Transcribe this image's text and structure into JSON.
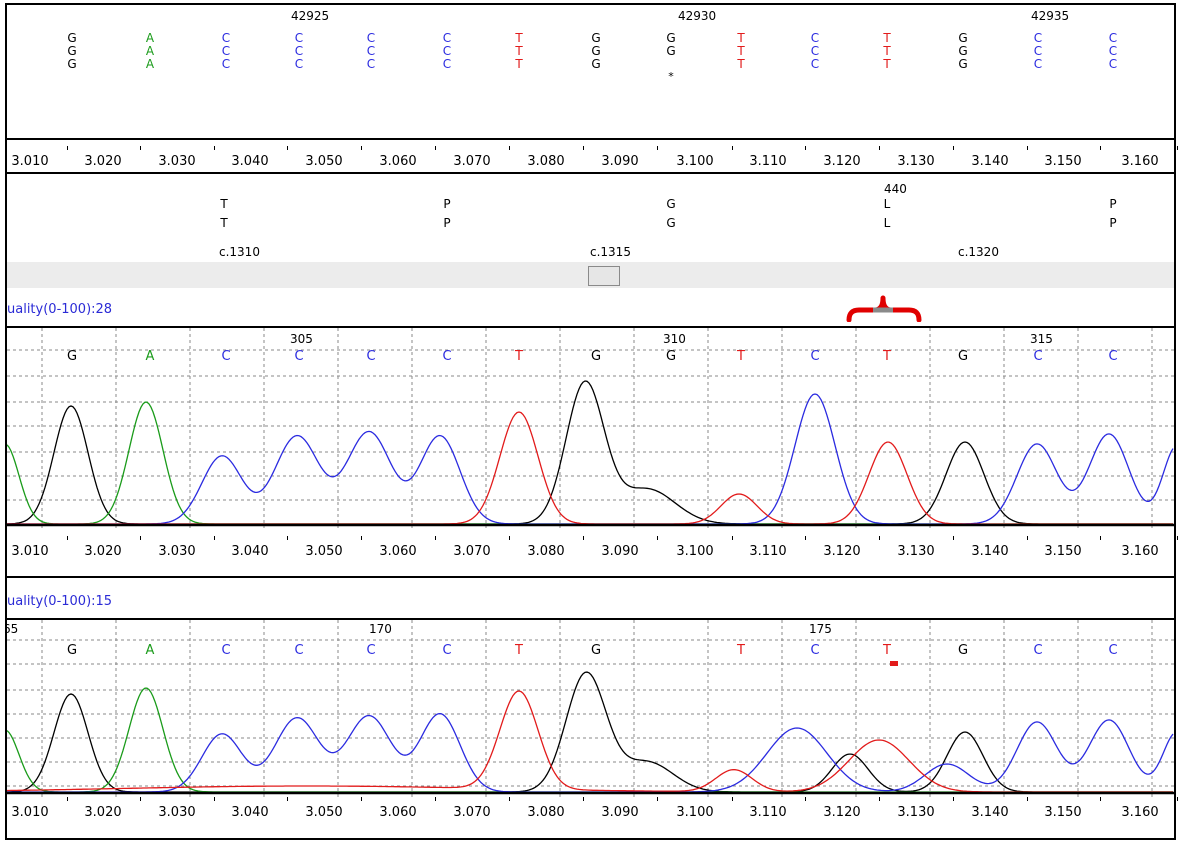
{
  "colors": {
    "A": "#1a9b1a",
    "C": "#2b2be0",
    "G": "#000000",
    "T": "#e21b1b",
    "quality_text": "#2b2bd6",
    "bracket": "#e00000"
  },
  "reference_panel": {
    "position_labels": [
      "42925",
      "42930",
      "42935"
    ],
    "rows": [
      [
        "G",
        "A",
        "C",
        "C",
        "C",
        "C",
        "T",
        "G",
        "G",
        "T",
        "C",
        "T",
        "G",
        "C",
        "C"
      ],
      [
        "G",
        "A",
        "C",
        "C",
        "C",
        "C",
        "T",
        "G",
        "G",
        "T",
        "C",
        "T",
        "G",
        "C",
        "C"
      ],
      [
        "G",
        "A",
        "C",
        "C",
        "C",
        "C",
        "T",
        "G",
        "",
        "T",
        "C",
        "T",
        "G",
        "C",
        "C"
      ]
    ],
    "gap_marker": "*"
  },
  "ruler_ticks": [
    "3.010",
    "3.020",
    "3.030",
    "3.040",
    "3.050",
    "3.060",
    "3.070",
    "3.080",
    "3.090",
    "3.100",
    "3.110",
    "3.120",
    "3.130",
    "3.140",
    "3.150",
    "3.160"
  ],
  "protein_panel": {
    "codon_number": "440",
    "row1": [
      "T",
      "P",
      "G",
      "L",
      "P"
    ],
    "row2": [
      "T",
      "P",
      "G",
      "L",
      "P"
    ],
    "cdna_labels": [
      "c.1310",
      "c.1315",
      "c.1320"
    ]
  },
  "trace1": {
    "quality_label": "uality(0-100):28",
    "position_labels": [
      "305",
      "310",
      "315"
    ],
    "bases": [
      "G",
      "A",
      "C",
      "C",
      "C",
      "C",
      "T",
      "G",
      "G",
      "T",
      "C",
      "T",
      "G",
      "C",
      "C"
    ]
  },
  "trace2": {
    "quality_label": "uality(0-100):15",
    "position_labels": [
      "65",
      "170",
      "175"
    ],
    "bases": [
      "G",
      "A",
      "C",
      "C",
      "C",
      "C",
      "T",
      "G",
      "",
      "T",
      "C",
      "T",
      "G",
      "C",
      "C"
    ]
  }
}
